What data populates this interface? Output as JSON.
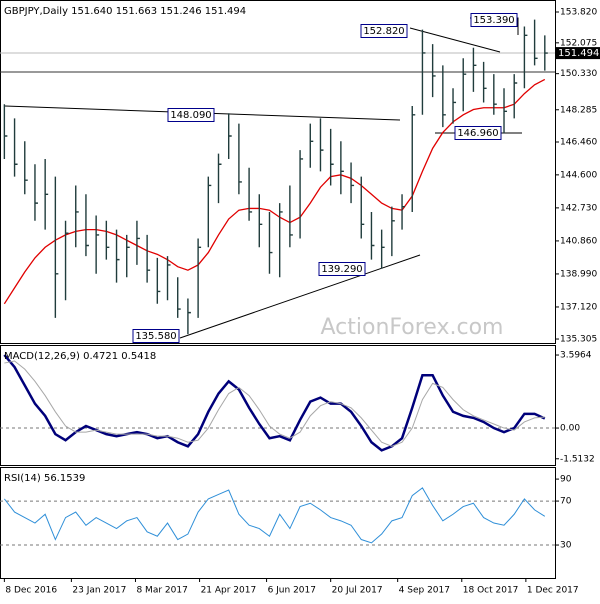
{
  "chart_data": [
    {
      "type": "hlc",
      "title": "GBPJPY,Daily  151.640 151.663 151.246 151.494",
      "watermark": "ActionForex.com",
      "x": [
        "2016-12-08",
        "2016-12-15",
        "2016-12-22",
        "2016-12-29",
        "2017-01-05",
        "2017-01-12",
        "2017-01-19",
        "2017-01-26",
        "2017-02-02",
        "2017-02-09",
        "2017-02-16",
        "2017-02-23",
        "2017-03-02",
        "2017-03-09",
        "2017-03-16",
        "2017-03-23",
        "2017-03-30",
        "2017-04-06",
        "2017-04-13",
        "2017-04-20",
        "2017-04-27",
        "2017-05-04",
        "2017-05-11",
        "2017-05-18",
        "2017-05-25",
        "2017-06-01",
        "2017-06-08",
        "2017-06-15",
        "2017-06-22",
        "2017-06-29",
        "2017-07-06",
        "2017-07-13",
        "2017-07-20",
        "2017-07-27",
        "2017-08-03",
        "2017-08-10",
        "2017-08-17",
        "2017-08-24",
        "2017-08-31",
        "2017-09-07",
        "2017-09-14",
        "2017-09-21",
        "2017-09-28",
        "2017-10-05",
        "2017-10-12",
        "2017-10-19",
        "2017-10-26",
        "2017-11-02",
        "2017-11-09",
        "2017-11-16",
        "2017-11-23",
        "2017-11-30",
        "2017-12-07",
        "2017-12-14"
      ],
      "high": [
        148.6,
        147.8,
        146.5,
        145.2,
        145.5,
        144.5,
        142.0,
        144.0,
        143.5,
        142.3,
        142.0,
        141.5,
        141.2,
        142.0,
        141.2,
        139.9,
        140.0,
        138.8,
        137.6,
        141.0,
        144.5,
        145.8,
        148.09,
        147.5,
        145.0,
        143.5,
        142.5,
        143.0,
        144.0,
        146.0,
        147.5,
        147.8,
        147.2,
        146.5,
        145.3,
        144.5,
        142.5,
        141.5,
        142.8,
        143.5,
        148.5,
        152.82,
        152.0,
        150.8,
        149.5,
        151.2,
        151.8,
        151.0,
        150.3,
        149.5,
        150.3,
        153.0,
        153.39,
        152.5
      ],
      "low": [
        145.5,
        144.5,
        143.5,
        142.0,
        141.5,
        136.5,
        137.5,
        140.5,
        140.0,
        139.0,
        139.8,
        138.5,
        138.8,
        139.5,
        138.5,
        137.3,
        137.5,
        136.5,
        135.58,
        136.5,
        140.5,
        143.0,
        145.5,
        143.5,
        142.0,
        140.5,
        139.0,
        138.8,
        140.5,
        141.0,
        145.0,
        144.8,
        144.0,
        143.5,
        143.0,
        141.0,
        139.8,
        139.29,
        140.0,
        141.5,
        142.5,
        148.0,
        149.0,
        147.3,
        147.5,
        148.2,
        149.3,
        148.7,
        148.0,
        146.96,
        147.8,
        149.5,
        150.8,
        150.5
      ],
      "close": [
        146.8,
        145.2,
        144.3,
        143.0,
        143.5,
        139.0,
        141.3,
        142.5,
        140.6,
        141.2,
        140.5,
        139.8,
        140.5,
        141.0,
        139.2,
        138.0,
        139.5,
        137.0,
        136.8,
        140.5,
        144.0,
        145.2,
        146.8,
        144.2,
        142.5,
        141.8,
        140.2,
        142.5,
        141.2,
        145.5,
        146.5,
        146.0,
        145.2,
        144.8,
        144.0,
        141.8,
        140.6,
        140.5,
        142.0,
        142.8,
        148.0,
        151.5,
        150.2,
        148.0,
        148.7,
        150.3,
        150.8,
        149.5,
        148.6,
        148.2,
        149.8,
        152.5,
        151.2,
        151.494
      ],
      "color": "#203c3c",
      "overlays": [
        {
          "color": "#e00000",
          "values": [
            137.3,
            138.2,
            139.1,
            139.9,
            140.5,
            140.9,
            141.2,
            141.4,
            141.5,
            141.5,
            141.4,
            141.2,
            140.9,
            140.6,
            140.3,
            140.1,
            139.8,
            139.4,
            139.2,
            139.5,
            140.2,
            141.2,
            142.1,
            142.6,
            142.7,
            142.7,
            142.6,
            142.2,
            141.9,
            142.2,
            143.0,
            143.9,
            144.5,
            144.6,
            144.4,
            144.0,
            143.5,
            143.0,
            142.7,
            142.6,
            143.4,
            144.8,
            146.1,
            147.0,
            147.6,
            148.0,
            148.3,
            148.4,
            148.4,
            148.4,
            148.6,
            149.2,
            149.7,
            150.0
          ]
        }
      ],
      "last_price": 151.494,
      "annotations": [
        "152.820",
        "153.390",
        "148.090",
        "146.960",
        "139.290",
        "135.580"
      ],
      "xlim": [
        "2016-12-05",
        "2017-12-21"
      ],
      "ylim": [
        135.08,
        154.5
      ],
      "yticks": [
        {
          "value": 153.82,
          "label": "153.820"
        },
        152.075,
        {
          "value": 150.33,
          "label": "150.330"
        },
        148.285,
        {
          "value": 146.46,
          "label": "146.460"
        },
        {
          "value": 144.6,
          "label": "144.600"
        },
        {
          "value": 142.73,
          "label": "142.730"
        },
        {
          "value": 140.86,
          "label": "140.860"
        },
        {
          "value": 138.99,
          "label": "138.990"
        },
        {
          "value": 137.12,
          "label": "137.120"
        },
        135.305
      ]
    },
    {
      "type": "line",
      "title": "MACD(12,26,9) 0.4721 0.5418",
      "ylim": [
        -1.82,
        4.09
      ],
      "yticks": [
        3.5964,
        {
          "value": 0,
          "label": "0.00"
        },
        -1.5132
      ],
      "levels": [
        0
      ],
      "series": [
        {
          "color": "#00007a",
          "values": [
            3.6,
            3.0,
            2.1,
            1.2,
            0.6,
            -0.3,
            -0.6,
            -0.2,
            0.1,
            -0.1,
            -0.3,
            -0.4,
            -0.3,
            -0.2,
            -0.3,
            -0.5,
            -0.4,
            -0.7,
            -0.9,
            -0.3,
            0.8,
            1.7,
            2.3,
            1.9,
            1.0,
            0.2,
            -0.5,
            -0.4,
            -0.6,
            0.4,
            1.3,
            1.5,
            1.2,
            1.2,
            0.8,
            0.1,
            -0.7,
            -1.1,
            -0.9,
            -0.5,
            1.0,
            2.6,
            2.6,
            1.6,
            0.8,
            0.6,
            0.5,
            0.3,
            0.0,
            -0.2,
            0.0,
            0.7,
            0.7,
            0.4721
          ]
        },
        {
          "color": "#a8a8a8",
          "values": [
            3.2,
            3.3,
            2.9,
            2.3,
            1.6,
            0.8,
            0.1,
            -0.2,
            -0.2,
            -0.1,
            -0.2,
            -0.3,
            -0.3,
            -0.3,
            -0.3,
            -0.4,
            -0.4,
            -0.5,
            -0.7,
            -0.6,
            0.0,
            0.9,
            1.7,
            2.0,
            1.6,
            0.9,
            0.1,
            -0.3,
            -0.5,
            -0.2,
            0.6,
            1.1,
            1.3,
            1.2,
            1.0,
            0.5,
            -0.1,
            -0.7,
            -0.9,
            -0.7,
            0.0,
            1.4,
            2.2,
            2.0,
            1.4,
            0.9,
            0.6,
            0.4,
            0.2,
            0.0,
            -0.1,
            0.3,
            0.5,
            0.5418
          ]
        }
      ]
    },
    {
      "type": "line",
      "title": "RSI(14) 56.1539",
      "ylim": [
        0,
        101
      ],
      "yticks": [
        90,
        70,
        30
      ],
      "levels": [
        70,
        30
      ],
      "series": [
        {
          "color": "#2f8fd8",
          "values": [
            72,
            60,
            55,
            50,
            58,
            35,
            55,
            60,
            48,
            55,
            50,
            45,
            52,
            55,
            42,
            38,
            50,
            35,
            40,
            60,
            72,
            76,
            80,
            58,
            48,
            45,
            38,
            58,
            45,
            65,
            68,
            62,
            55,
            52,
            48,
            35,
            32,
            40,
            52,
            55,
            75,
            82,
            66,
            52,
            58,
            65,
            68,
            55,
            50,
            48,
            58,
            72,
            62,
            56.1539
          ]
        }
      ],
      "xticks": [
        {
          "value": "2016-12-08",
          "label": "8 Dec 2016"
        },
        {
          "value": "2017-01-23",
          "label": "23 Jan 2017"
        },
        {
          "value": "2017-03-08",
          "label": "8 Mar 2017"
        },
        {
          "value": "2017-04-21",
          "label": "21 Apr 2017"
        },
        {
          "value": "2017-06-06",
          "label": "6 Jun 2017"
        },
        {
          "value": "2017-07-20",
          "label": "20 Jul 2017"
        },
        {
          "value": "2017-09-04",
          "label": "4 Sep 2017"
        },
        {
          "value": "2017-10-18",
          "label": "18 Oct 2017"
        },
        {
          "value": "2017-12-01",
          "label": "1 Dec 2017"
        }
      ]
    }
  ]
}
